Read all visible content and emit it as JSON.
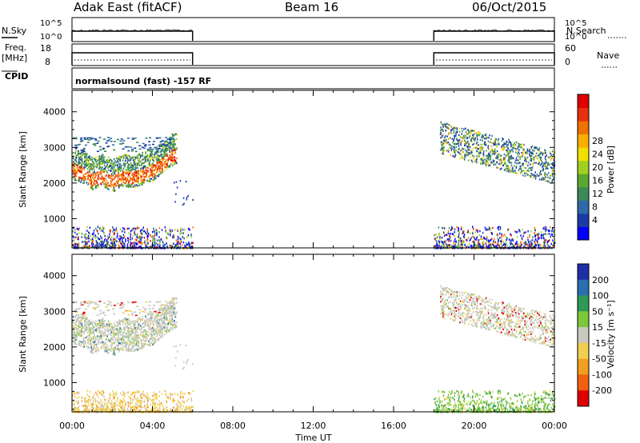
{
  "header": {
    "station": "Adak East (fitACF)",
    "beam": "Beam 16",
    "date": "06/Oct/2015"
  },
  "status_panels": {
    "nsky_label": "N.Sky",
    "nsearch_label": "N.Search",
    "freq_label_1": "Freq.",
    "freq_label_2": "[MHz]",
    "nave_label": "Nave",
    "cpid_label": "CPID",
    "noise_left_ticks": [
      "10^5",
      "10^0"
    ],
    "noise_right_ticks": [
      "10^5",
      "10^0"
    ],
    "freq_left_ticks": [
      "18",
      "8"
    ],
    "freq_right_ticks": [
      "60",
      "0"
    ],
    "cpid_text": "normalsound (fast) -157 RF"
  },
  "chart_data": [
    {
      "type": "heatmap",
      "panel": "power",
      "ylabel": "Slant Range [km]",
      "xlabel": "Time UT",
      "x_ticks": [
        "00:00",
        "04:00",
        "08:00",
        "12:00",
        "16:00",
        "20:00",
        "00:00"
      ],
      "x_hours": [
        0,
        4,
        8,
        12,
        16,
        20,
        24
      ],
      "ylim": [
        180,
        4600
      ],
      "y_ticks": [
        1000,
        2000,
        3000,
        4000
      ],
      "colorbar_label": "Power [dB]",
      "colorbar_ticks": [
        "4",
        "8",
        "12",
        "16",
        "20",
        "24",
        "28"
      ],
      "colorbar_colors": [
        "#0000ff",
        "#1a3ba6",
        "#2e6aa8",
        "#3a8a5a",
        "#5aa830",
        "#a0d020",
        "#f0e000",
        "#f8b000",
        "#f07000",
        "#e83010",
        "#e00000"
      ],
      "data_windows_hours": [
        [
          0,
          6
        ],
        [
          18,
          24
        ]
      ],
      "ionospheric_band_km": {
        "hours": [
          0,
          0.5,
          1,
          1.5,
          2,
          2.5,
          3,
          3.5,
          4,
          4.5,
          5
        ],
        "center": [
          2400,
          2300,
          2100,
          2200,
          2050,
          2200,
          2150,
          2250,
          2350,
          2550,
          2800
        ]
      }
    },
    {
      "type": "heatmap",
      "panel": "velocity",
      "ylabel": "Slant Range [km]",
      "xlabel": "Time UT",
      "x_ticks": [
        "00:00",
        "04:00",
        "08:00",
        "12:00",
        "16:00",
        "20:00",
        "00:00"
      ],
      "x_hours": [
        0,
        4,
        8,
        12,
        16,
        20,
        24
      ],
      "ylim": [
        180,
        4600
      ],
      "y_ticks": [
        1000,
        2000,
        3000,
        4000
      ],
      "colorbar_label": "Velocity [m s⁻¹]",
      "colorbar_ticks": [
        "200",
        "100",
        "50",
        "15",
        "-15",
        "-50",
        "-100",
        "-200"
      ],
      "colorbar_colors": [
        "#1f2fa8",
        "#2b6eb0",
        "#2e9a55",
        "#7cc83a",
        "#c8c8c0",
        "#f0d050",
        "#f0a020",
        "#f06010",
        "#e00000"
      ],
      "data_windows_hours": [
        [
          0,
          6
        ],
        [
          18,
          24
        ]
      ]
    }
  ]
}
